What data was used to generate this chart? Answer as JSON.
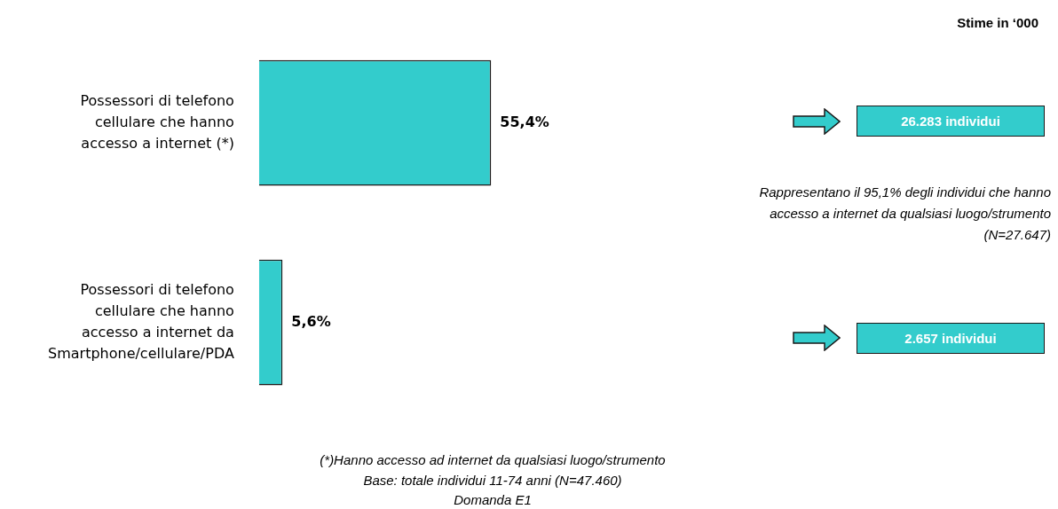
{
  "chart_data": {
    "type": "bar",
    "orientation": "horizontal",
    "categories": [
      "Possessori di telefono cellulare che hanno accesso a internet (*)",
      "Possessori di telefono cellulare che hanno accesso a internet da Smartphone/cellulare/PDA"
    ],
    "values": [
      55.4,
      5.6
    ],
    "value_labels": [
      "55,4%",
      "5,6%"
    ],
    "color": "#33cccc",
    "legend": false,
    "tick_labels": "y",
    "annotations": [
      "Stime in ‘000",
      "26.283 individui",
      "Rappresentano il 95,1% degli individui che hanno accesso a internet da qualsiasi luogo/strumento (N=27.647)",
      "2.657 individui",
      "(*)Hanno accesso ad internet da qualsiasi luogo/strumento",
      "Base: totale individui 11-74 anni (N=47.460)",
      "Domanda E1"
    ]
  }
}
